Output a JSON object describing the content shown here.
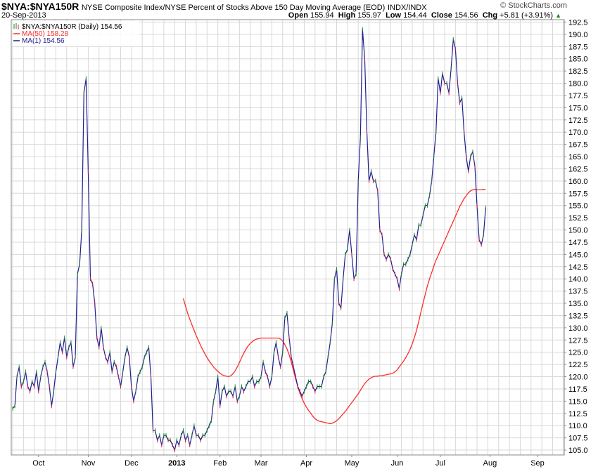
{
  "header": {
    "ticker": "$NYA:$NYA150R",
    "description": "NYSE Composite Index/NYSE Percent of Stocks Above 150 Day Moving Average (EOD)",
    "exchange": "INDX/INDX",
    "date": "20-Sep-2013",
    "open_label": "Open",
    "open_value": "155.94",
    "high_label": "High",
    "high_value": "155.97",
    "low_label": "Low",
    "low_value": "154.44",
    "close_label": "Close",
    "close_value": "154.56",
    "chg_label": "Chg",
    "chg_value": "+5.81 (+3.91%)",
    "chg_arrow": "▲",
    "watermark": "© StockCharts.com"
  },
  "legend": {
    "price_label": "$NYA:$NYA150R (Daily) 154.56",
    "ma50_label": "MA(50) 158.28",
    "ma1_label": "MA(1) 154.56"
  },
  "colors": {
    "price_line": "#1f1f8f",
    "ma50_line": "#ff2a2a",
    "up_tick": "#1a8a1a",
    "down_tick": "#cc1a4a",
    "grid": "#d8d8d8"
  },
  "chart_data": {
    "type": "line",
    "title": "$NYA:$NYA150R NYSE Composite Index/NYSE Percent of Stocks Above 150 Day Moving Average (EOD)",
    "grid": true,
    "legend_position": "top-left",
    "ylim": [
      104,
      193
    ],
    "y_ticks": [
      "105.0",
      "107.5",
      "110.0",
      "112.5",
      "115.0",
      "117.5",
      "120.0",
      "122.5",
      "125.0",
      "127.5",
      "130.0",
      "132.5",
      "135.0",
      "137.5",
      "140.0",
      "142.5",
      "145.0",
      "147.5",
      "150.0",
      "152.5",
      "155.0",
      "157.5",
      "160.0",
      "162.5",
      "165.0",
      "167.5",
      "170.0",
      "172.5",
      "175.0",
      "177.5",
      "180.0",
      "182.5",
      "185.0",
      "187.5",
      "190.0",
      "192.5"
    ],
    "x_ticks": [
      {
        "label": "Oct",
        "bold": false,
        "day": 12
      },
      {
        "label": "Nov",
        "bold": false,
        "day": 35
      },
      {
        "label": "Dec",
        "bold": false,
        "day": 55
      },
      {
        "label": "2013",
        "bold": true,
        "day": 76
      },
      {
        "label": "Feb",
        "bold": false,
        "day": 96
      },
      {
        "label": "Mar",
        "bold": false,
        "day": 115
      },
      {
        "label": "Apr",
        "bold": false,
        "day": 136
      },
      {
        "label": "May",
        "bold": false,
        "day": 157
      },
      {
        "label": "Jun",
        "bold": false,
        "day": 178
      },
      {
        "label": "Jul",
        "bold": false,
        "day": 198
      },
      {
        "label": "Aug",
        "bold": false,
        "day": 221
      },
      {
        "label": "Sep",
        "bold": false,
        "day": 243
      }
    ],
    "series": [
      {
        "name": "$NYA:$NYA150R (Daily)",
        "values": [
          113.5,
          114,
          120,
          122,
          118,
          119,
          121,
          118,
          117,
          119,
          118,
          121,
          117,
          120,
          122,
          123,
          121,
          118,
          114,
          117,
          121,
          124,
          127,
          125,
          128,
          124,
          126,
          127,
          122,
          124,
          141,
          143,
          150,
          178,
          181,
          162,
          140,
          139,
          135,
          128,
          126,
          130,
          126,
          124,
          123,
          125,
          121,
          123,
          122,
          120,
          118,
          121,
          124,
          126,
          124,
          118,
          115,
          117,
          120,
          121,
          122,
          124,
          125,
          126,
          120,
          109,
          109,
          107,
          108,
          106,
          108,
          108,
          107,
          107,
          106,
          105,
          107,
          106,
          108,
          109,
          107,
          108,
          106,
          108,
          110,
          108,
          108,
          107,
          108,
          108,
          109,
          110,
          111,
          115,
          117,
          120,
          114,
          117,
          118,
          116,
          117,
          117,
          116,
          118,
          115,
          116,
          118,
          117,
          118,
          119,
          119,
          120,
          118,
          119,
          119,
          120,
          123,
          121,
          120,
          118,
          120,
          125,
          127,
          124,
          122,
          125,
          132,
          133,
          128,
          124,
          122,
          120,
          118,
          117,
          116,
          117,
          118,
          119,
          119,
          118,
          117,
          118,
          118,
          118,
          120,
          121,
          124,
          127,
          131,
          140,
          142,
          135,
          134,
          140,
          145,
          146,
          150,
          145,
          140,
          141,
          160,
          169,
          191,
          185,
          170,
          160,
          162,
          160,
          160,
          158,
          150,
          149,
          145,
          144,
          145,
          144,
          142,
          141,
          140,
          138,
          141,
          143,
          143,
          144,
          145,
          147,
          149,
          148,
          151,
          151,
          153,
          155,
          155,
          157,
          160,
          165,
          170,
          181,
          178,
          182,
          180,
          180,
          178,
          183,
          189,
          187,
          180,
          176,
          177,
          170,
          165,
          162,
          165,
          166,
          163,
          155,
          148,
          147,
          149,
          154.56
        ]
      },
      {
        "name": "MA(50)",
        "values": [
          136,
          134.5,
          133,
          131.8,
          130.6,
          129.5,
          128.4,
          127.4,
          126.4,
          125.5,
          124.7,
          123.9,
          123.2,
          122.6,
          122,
          121.5,
          121.1,
          120.7,
          120.4,
          120.2,
          120.1,
          120,
          120.2,
          120.6,
          121.2,
          122,
          122.9,
          123.9,
          124.8,
          125.6,
          126.3,
          126.8,
          127.2,
          127.5,
          127.7,
          127.8,
          127.9,
          127.9,
          127.9,
          127.9,
          127.9,
          127.9,
          127.9,
          127.9,
          127.9,
          127.7,
          127.3,
          126.6,
          125.7,
          124.5,
          123,
          121.3,
          119.6,
          118,
          116.6,
          115.5,
          114.6,
          113.8,
          113.1,
          112.5,
          111.9,
          111.4,
          111.1,
          110.9,
          110.8,
          110.7,
          110.6,
          110.5,
          110.4,
          110.5,
          110.7,
          111,
          111.4,
          111.9,
          112.4,
          112.9,
          113.5,
          114.1,
          114.7,
          115.3,
          115.9,
          116.5,
          117.2,
          117.9,
          118.6,
          119.1,
          119.5,
          119.8,
          120,
          120.1,
          120.1,
          120.2,
          120.2,
          120.3,
          120.4,
          120.5,
          120.6,
          120.7,
          121,
          121.4,
          122,
          122.6,
          123.2,
          123.9,
          124.7,
          125.6,
          126.7,
          128,
          129.5,
          131.3,
          133.2,
          135,
          136.8,
          138.5,
          140,
          141.3,
          142.6,
          143.8,
          144.8,
          145.8,
          146.8,
          147.8,
          148.8,
          149.8,
          150.8,
          151.8,
          152.8,
          153.8,
          154.8,
          155.6,
          156.4,
          157,
          157.6,
          158,
          158.2,
          158.3,
          158.2,
          158.2,
          158.2,
          158.3,
          158.28
        ]
      }
    ]
  }
}
